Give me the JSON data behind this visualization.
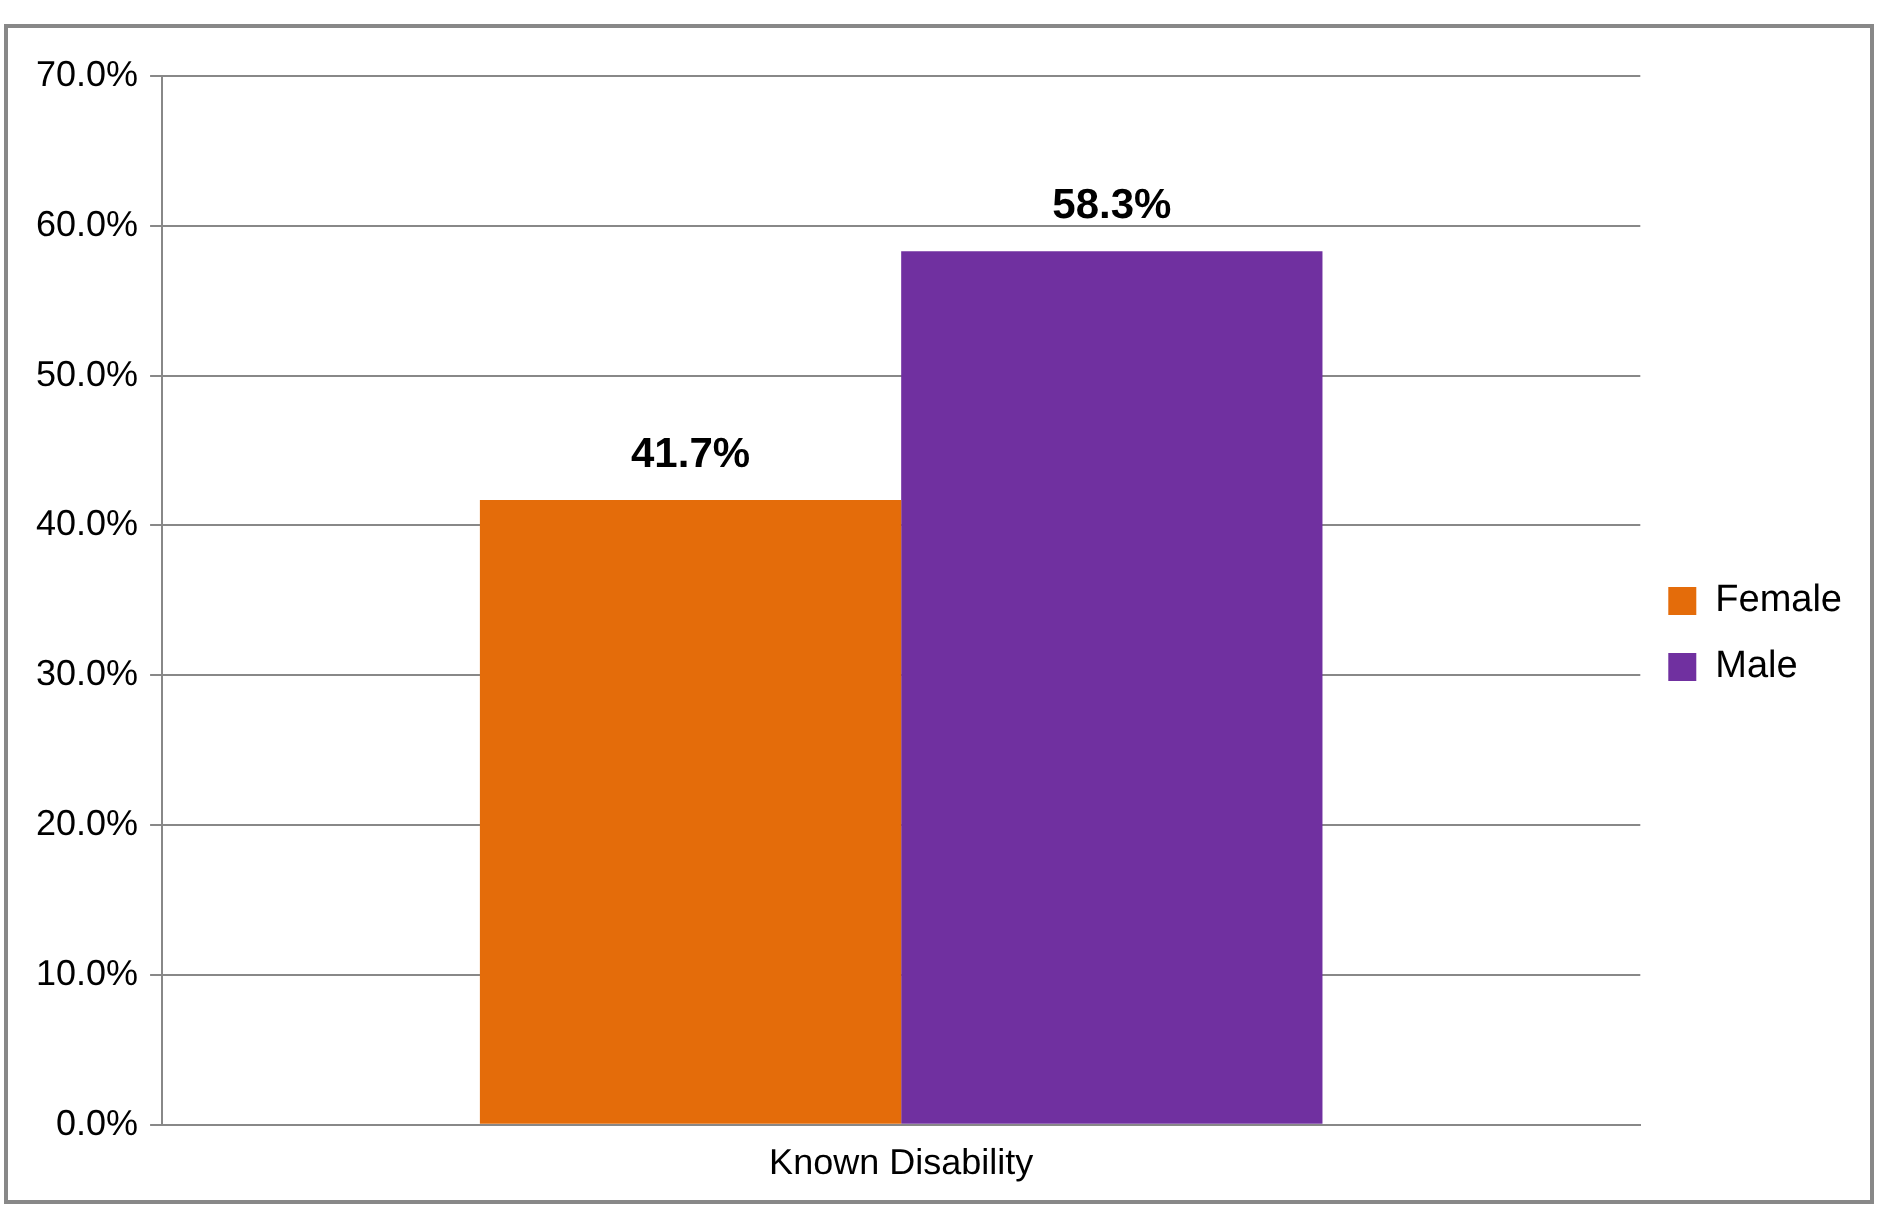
{
  "chart_data": {
    "type": "bar",
    "categories": [
      "Known Disability"
    ],
    "series": [
      {
        "name": "Female",
        "color": "#e46c0a",
        "values": [
          41.7
        ],
        "value_labels": [
          "41.7%"
        ]
      },
      {
        "name": "Male",
        "color": "#7030a0",
        "values": [
          58.3
        ],
        "value_labels": [
          "58.3%"
        ]
      }
    ],
    "ylim": [
      0,
      70
    ],
    "yticks": [
      {
        "value": 0,
        "label": "0.0%"
      },
      {
        "value": 10,
        "label": "10.0%"
      },
      {
        "value": 20,
        "label": "20.0%"
      },
      {
        "value": 30,
        "label": "30.0%"
      },
      {
        "value": 40,
        "label": "40.0%"
      },
      {
        "value": 50,
        "label": "50.0%"
      },
      {
        "value": 60,
        "label": "60.0%"
      },
      {
        "value": 70,
        "label": "70.0%"
      }
    ],
    "grid": "y",
    "legend": "right"
  }
}
